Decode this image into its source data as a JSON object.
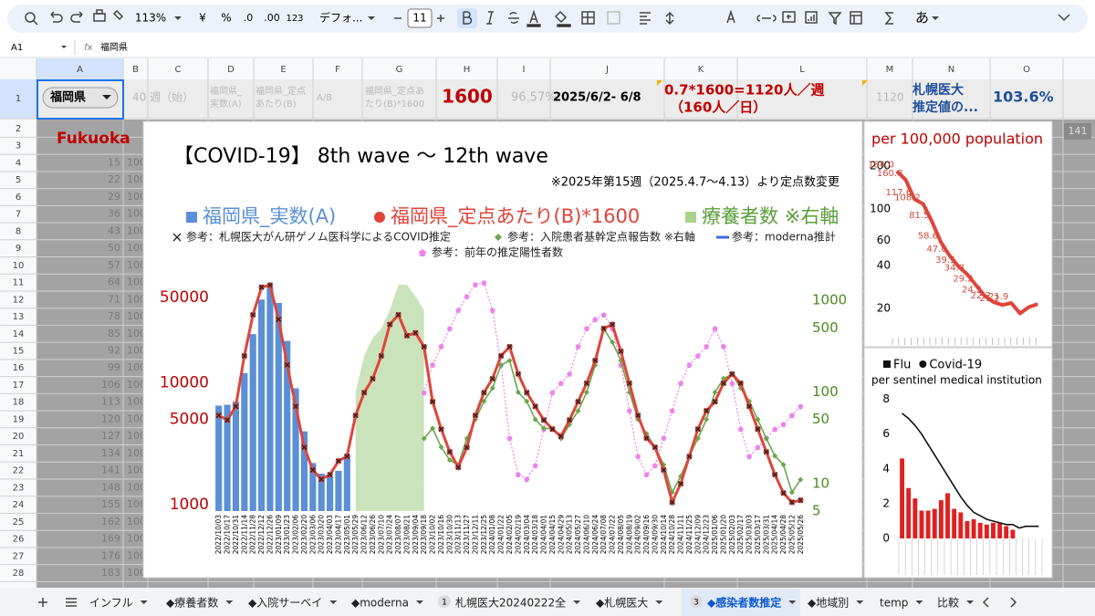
{
  "toolbar": {
    "zoom": "113%",
    "currency": "¥",
    "percent": "%",
    "decimal_less": ".0",
    "decimal_more": ".00",
    "number_format": "123",
    "font": "デフォ...",
    "font_size": "11",
    "input_mode": "あ"
  },
  "formula_bar": {
    "cell": "A1",
    "fx": "fx",
    "formula": "福岡県"
  },
  "columns": [
    "A",
    "B",
    "C",
    "D",
    "E",
    "F",
    "G",
    "H",
    "I",
    "J",
    "K",
    "L",
    "M",
    "N",
    "O"
  ],
  "rows": [
    1,
    2,
    3,
    4,
    5,
    6,
    7,
    8,
    9,
    10,
    11,
    12,
    13,
    14,
    15,
    16,
    17,
    18,
    19,
    20,
    21,
    22,
    23,
    24,
    25,
    26,
    27,
    28
  ],
  "row1": {
    "A": "福岡県",
    "B": "40 週（始）",
    "D": [
      "福岡県_",
      "実数(A)"
    ],
    "E": [
      "福岡県_定点",
      "あたり(B)"
    ],
    "F": "A/B",
    "G": [
      "福岡県_定点あ",
      "たり(B)*1600"
    ],
    "H": 1600,
    "I": "96.57%",
    "J": "2025/6/2- 6/8",
    "K": [
      "0.7*1600=1120人／週",
      "（160人／日）"
    ],
    "M": 1120,
    "N": [
      "札幌医大",
      "推定値の..."
    ],
    "O": "103.6%"
  },
  "row2": {
    "A": "Fukuoka"
  },
  "column_a": [
    15,
    22,
    29,
    36,
    43,
    50,
    57,
    64,
    71,
    78,
    85,
    92,
    99,
    106,
    113,
    120,
    127,
    134,
    141,
    148,
    155,
    162,
    169,
    176,
    183
  ],
  "column_b": [
    100,
    100,
    100,
    100,
    100,
    100,
    100,
    100,
    100,
    100,
    100,
    100,
    100,
    100,
    100,
    100,
    100,
    100,
    100,
    100,
    100,
    100,
    100,
    100,
    100
  ],
  "side_cell": 141,
  "tabs": [
    {
      "name": "インフル"
    },
    {
      "name": "◆療養者数"
    },
    {
      "name": "◆入院サーベイ"
    },
    {
      "name": "◆moderna"
    },
    {
      "badge": 1,
      "name": "札幌医大20240222全"
    },
    {
      "name": "◆札幌医大"
    },
    {
      "badge": 3,
      "name": "◆感染者数推定"
    },
    {
      "name": "◆地域別"
    },
    {
      "name": "temp"
    },
    {
      "name": "比較"
    }
  ],
  "chart_data": [
    {
      "type": "combo",
      "title": "【COVID-19】 8th wave 〜 12th wave",
      "note": "※2025年第15週（2025.4.7〜4.13）より定点数変更",
      "log": true,
      "categories": [
        "2022/10/03",
        "2022/10/17",
        "2022/10/31",
        "2022/11/14",
        "2022/11/28",
        "2022/12/12",
        "2022/12/26",
        "2023/01/09",
        "2023/01/23",
        "2023/02/06",
        "2023/02/20",
        "2023/03/06",
        "2023/03/20",
        "2023/04/03",
        "2023/04/17",
        "2023/05/01",
        "2023/05/29",
        "2023/06/12",
        "2023/06/26",
        "2023/07/10",
        "2023/07/24",
        "2023/08/07",
        "2023/08/21",
        "2023/09/04",
        "2023/09/18",
        "2023/10/02",
        "2023/10/16",
        "2023/10/30",
        "2023/11/13",
        "2023/11/27",
        "2023/12/11",
        "2023/12/25",
        "2024/01/08",
        "2024/01/22",
        "2024/02/05",
        "2024/02/19",
        "2024/03/04",
        "2024/03/18",
        "2024/04/01",
        "2024/04/15",
        "2024/04/29",
        "2024/05/13",
        "2024/05/27",
        "2024/06/10",
        "2024/06/24",
        "2024/07/08",
        "2024/07/22",
        "2024/08/05",
        "2024/08/19",
        "2024/09/02",
        "2024/09/16",
        "2024/09/30",
        "2024/10/14",
        "2024/10/28",
        "2024/11/11",
        "2024/11/25",
        "2024/12/09",
        "2024/12/23",
        "2025/01/06",
        "2025/01/20",
        "2025/02/03",
        "2025/02/17",
        "2025/03/03",
        "2025/03/17",
        "2025/03/31",
        "2025/04/14",
        "2025/04/28",
        "2025/05/12",
        "2025/05/26"
      ],
      "ylim": [
        890,
        78000
      ],
      "yticks": [
        1000,
        5000,
        10000,
        50000
      ],
      "y_color": "#c00000",
      "y2lim": [
        5,
        1950
      ],
      "y2ticks": [
        5,
        10,
        50,
        100,
        500,
        1000
      ],
      "y2_color": "#4a8a1e",
      "series": [
        {
          "name": "福岡県_実数(A)",
          "type": "bar",
          "color": "#5b8fd6",
          "values": [
            6500,
            6600,
            7000,
            12000,
            25000,
            48000,
            60000,
            45000,
            22000,
            9000,
            4000,
            2200,
            1800,
            1700,
            1900,
            2600,
            null,
            null,
            null,
            null,
            null,
            null,
            null,
            null,
            null,
            null,
            null,
            null,
            null,
            null,
            null,
            null,
            null,
            null,
            null,
            null,
            null,
            null,
            null,
            null,
            null,
            null,
            null,
            null,
            null,
            null,
            null,
            null,
            null,
            null,
            null,
            null,
            null,
            null,
            null,
            null,
            null,
            null,
            null,
            null,
            null,
            null,
            null,
            null,
            null,
            null,
            null,
            null,
            null
          ]
        },
        {
          "name": "福岡県_定点あたり(B)*1600",
          "type": "line",
          "marker": "circle",
          "color": "#e0443a",
          "values": [
            5400,
            4950,
            6400,
            16600,
            36000,
            60500,
            63000,
            33000,
            14000,
            6400,
            2960,
            1930,
            1620,
            1770,
            2290,
            2500,
            5400,
            8300,
            10800,
            16600,
            30000,
            36000,
            24300,
            25600,
            19700,
            7000,
            4170,
            2720,
            2030,
            2960,
            5400,
            8300,
            10800,
            16600,
            19700,
            11800,
            8300,
            6400,
            4950,
            4170,
            3640,
            4950,
            7000,
            9900,
            15200,
            27800,
            30000,
            18100,
            9900,
            5400,
            3520,
            2960,
            1930,
            1050,
            1490,
            2490,
            4170,
            5900,
            7000,
            9900,
            11800,
            9900,
            6400,
            4170,
            2720,
            1770,
            1250,
            1050,
            1090
          ]
        },
        {
          "name": "療養者数 ※右軸",
          "type": "area",
          "axis": "y2",
          "color": "#a9d18e",
          "values": [
            null,
            null,
            null,
            null,
            null,
            null,
            null,
            null,
            null,
            null,
            null,
            null,
            null,
            null,
            null,
            null,
            99,
            247,
            390,
            490,
            780,
            1480,
            1480,
            1100,
            780,
            null,
            null,
            null,
            null,
            null,
            null,
            null,
            null,
            null,
            null,
            null,
            null,
            null,
            null,
            null,
            null,
            null,
            null,
            null,
            null,
            null,
            null,
            null,
            null,
            null,
            null,
            null,
            null,
            null,
            null,
            null,
            null,
            null,
            null,
            null,
            null,
            null,
            null,
            null,
            null,
            null,
            null,
            null,
            null
          ]
        },
        {
          "name": "参考：札幌医大がん研ゲノム医科学によるCOVID推定",
          "type": "markers",
          "marker": "x",
          "color": "#222222",
          "values": [
            5400,
            4950,
            6400,
            16600,
            36000,
            60500,
            63000,
            33000,
            14000,
            6400,
            2960,
            1930,
            1620,
            1770,
            2290,
            2500,
            5400,
            8300,
            10800,
            16600,
            30000,
            36000,
            24300,
            25600,
            19700,
            7000,
            4170,
            2720,
            2030,
            2960,
            5400,
            8300,
            10800,
            16600,
            19700,
            11800,
            8300,
            6400,
            4950,
            4170,
            3640,
            4950,
            7000,
            9900,
            15200,
            27800,
            30000,
            18100,
            9900,
            5400,
            3520,
            2960,
            1930,
            1050,
            1490,
            2490,
            4170,
            5900,
            7000,
            9900,
            11800,
            9900,
            6400,
            4170,
            2720,
            1770,
            1250,
            1050,
            1090
          ]
        },
        {
          "name": "参考：入院患者基幹定点報告数 ※右軸",
          "type": "line",
          "marker": "diamond",
          "axis": "y2",
          "color": "#6aa84f",
          "values": [
            null,
            null,
            null,
            null,
            null,
            null,
            null,
            null,
            null,
            null,
            null,
            null,
            null,
            null,
            null,
            null,
            null,
            null,
            null,
            null,
            null,
            null,
            null,
            null,
            31,
            40,
            25,
            18,
            16,
            31,
            50,
            79,
            110,
            196,
            220,
            99,
            79,
            50,
            40,
            40,
            31,
            44,
            62,
            99,
            196,
            490,
            350,
            220,
            99,
            50,
            35,
            25,
            16,
            8,
            12,
            20,
            31,
            50,
            99,
            140,
            156,
            110,
            79,
            50,
            31,
            20,
            16,
            8,
            11
          ]
        },
        {
          "name": "参考：moderna推計",
          "type": "line",
          "color": "#4466dd",
          "values": [
            null,
            null,
            null,
            null,
            null,
            null,
            null,
            null,
            null,
            null,
            null,
            null,
            null,
            null,
            null,
            null,
            null,
            null,
            null,
            null,
            null,
            null,
            null,
            null,
            null,
            null,
            null,
            null,
            null,
            null,
            null,
            null,
            null,
            null,
            null,
            null,
            null,
            null,
            null,
            null,
            null,
            null,
            null,
            null,
            null,
            null,
            null,
            null,
            null,
            null,
            null,
            null,
            null,
            null,
            null,
            null,
            null,
            null,
            null,
            null,
            null,
            null,
            null,
            null,
            null,
            null,
            null,
            null,
            null
          ]
        },
        {
          "name": "参考：前年の推定陽性者数",
          "type": "line",
          "marker": "pentagon",
          "dotted": true,
          "color": "#ee82ee",
          "values": [
            null,
            null,
            null,
            null,
            null,
            null,
            null,
            null,
            null,
            null,
            null,
            null,
            null,
            null,
            null,
            null,
            null,
            null,
            null,
            null,
            null,
            null,
            null,
            null,
            8300,
            14000,
            19800,
            27800,
            39200,
            50800,
            63600,
            65800,
            39200,
            14000,
            3520,
            1770,
            1620,
            2100,
            4170,
            8300,
            9900,
            11800,
            19800,
            27800,
            33000,
            36000,
            27800,
            14000,
            5900,
            2490,
            1770,
            2100,
            3520,
            5900,
            9900,
            14000,
            16600,
            19800,
            27800,
            19800,
            9900,
            4170,
            2490,
            2960,
            3520,
            4170,
            4560,
            5400,
            6400
          ]
        }
      ]
    },
    {
      "type": "line",
      "title": "per 100,000 population",
      "log": true,
      "color": "#e0443a",
      "label_color": "#d04a3a",
      "values": [
        184.0,
        160.8,
        117.6,
        108.2,
        81.5,
        58.6,
        47.0,
        39.5,
        34.8,
        29.2,
        24.5,
        22.2,
        21.2,
        21.9,
        18.5,
        20.5,
        21.5
      ],
      "value_labels": [
        "184.0",
        "160.8",
        "117.6",
        "108.2",
        "81.5",
        "58.6",
        "47.0",
        "39.5",
        "34.8",
        "29.2",
        "24.5",
        "22.2",
        "21.2",
        "21.9",
        null,
        null,
        null
      ],
      "ylim": [
        12.5,
        222
      ],
      "yticks": [
        20,
        40,
        60,
        100,
        200
      ]
    },
    {
      "type": "bar",
      "subtitle": "per sentinel medical institution",
      "ylim": [
        0,
        8.4
      ],
      "yticks": [
        0,
        2,
        4,
        6,
        8
      ],
      "series": [
        {
          "name": "Flu",
          "type": "bar",
          "color": "#e02020",
          "values": [
            4.6,
            2.9,
            2.3,
            1.6,
            1.6,
            1.7,
            2.2,
            2.6,
            1.7,
            1.5,
            1.0,
            1.1,
            0.9,
            0.8,
            0.9,
            0.9,
            0.7,
            0.5,
            null,
            null,
            null,
            null
          ]
        },
        {
          "name": "Covid-19",
          "type": "line",
          "color": "#111111",
          "values": [
            7.2,
            6.9,
            6.5,
            6.0,
            5.4,
            4.8,
            4.2,
            3.6,
            3.0,
            2.4,
            1.9,
            1.5,
            1.3,
            1.1,
            1.0,
            0.9,
            0.8,
            0.8,
            0.6,
            0.7,
            0.7,
            0.7
          ]
        }
      ]
    }
  ]
}
